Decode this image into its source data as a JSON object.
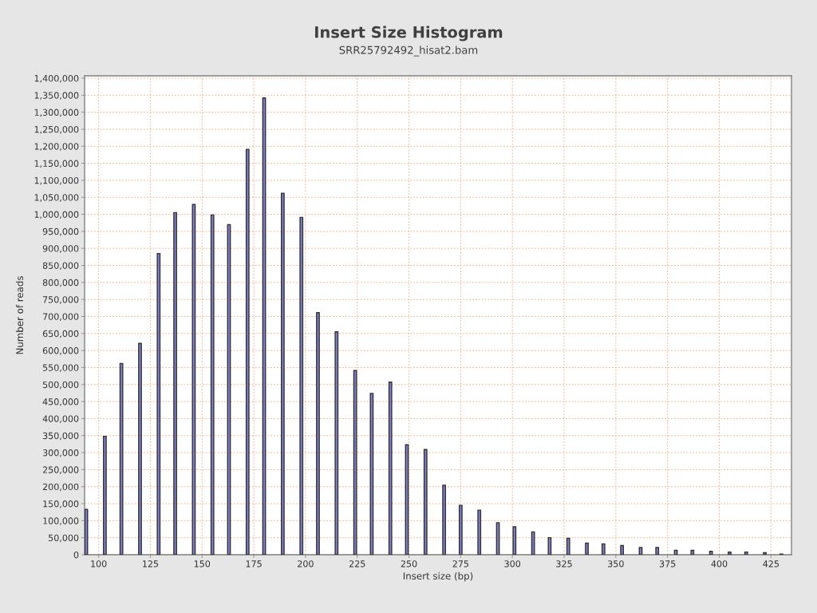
{
  "chart_data": {
    "type": "bar",
    "title": "Insert Size Histogram",
    "subtitle": "SRR25792492_hisat2.bam",
    "xlabel": "Insert size (bp)",
    "ylabel": "Number of reads",
    "x": [
      94,
      103,
      111,
      120,
      129,
      137,
      146,
      155,
      163,
      172,
      180,
      189,
      198,
      206,
      215,
      224,
      232,
      241,
      249,
      258,
      267,
      275,
      284,
      293,
      301,
      310,
      318,
      327,
      336,
      344,
      353,
      362,
      370,
      379,
      387,
      396,
      405,
      413,
      422,
      430
    ],
    "series": [
      {
        "color": "#8080cc",
        "values": [
          133000,
          348000,
          562000,
          621000,
          885000,
          1005000,
          1029000,
          998000,
          970000,
          1191000,
          1342000,
          1062000,
          991000,
          711000,
          655000,
          541000,
          474000,
          507000,
          323000,
          309000,
          204000,
          145000,
          131000,
          94000,
          82000,
          67000,
          50000,
          48000,
          34000,
          32000,
          27000,
          21000,
          21000,
          13000,
          13000,
          10000,
          8000,
          8000,
          6000,
          2000
        ]
      }
    ],
    "xlim": [
      93.2,
      434.9
    ],
    "xticks": [
      100,
      125,
      150,
      175,
      200,
      225,
      250,
      275,
      300,
      325,
      350,
      375,
      400,
      425
    ],
    "ylim": [
      0,
      1407000
    ],
    "yticks": [
      {
        "value": 0,
        "label": "0"
      },
      {
        "value": 50000,
        "label": "50,000"
      },
      {
        "value": 100000,
        "label": "100,000"
      },
      {
        "value": 150000,
        "label": "150,000"
      },
      {
        "value": 200000,
        "label": "200,000"
      },
      {
        "value": 250000,
        "label": "250,000"
      },
      {
        "value": 300000,
        "label": "300,000"
      },
      {
        "value": 350000,
        "label": "350,000"
      },
      {
        "value": 400000,
        "label": "400,000"
      },
      {
        "value": 450000,
        "label": "450,000"
      },
      {
        "value": 500000,
        "label": "500,000"
      },
      {
        "value": 550000,
        "label": "550,000"
      },
      {
        "value": 600000,
        "label": "600,000"
      },
      {
        "value": 650000,
        "label": "650,000"
      },
      {
        "value": 700000,
        "label": "700,000"
      },
      {
        "value": 750000,
        "label": "750,000"
      },
      {
        "value": 800000,
        "label": "800,000"
      },
      {
        "value": 850000,
        "label": "850,000"
      },
      {
        "value": 900000,
        "label": "900,000"
      },
      {
        "value": 950000,
        "label": "950,000"
      },
      {
        "value": 1000000,
        "label": "1,000,000"
      },
      {
        "value": 1050000,
        "label": "1,050,000"
      },
      {
        "value": 1100000,
        "label": "1,100,000"
      },
      {
        "value": 1150000,
        "label": "1,150,000"
      },
      {
        "value": 1200000,
        "label": "1,200,000"
      },
      {
        "value": 1250000,
        "label": "1,250,000"
      },
      {
        "value": 1300000,
        "label": "1,300,000"
      },
      {
        "value": 1350000,
        "label": "1,350,000"
      },
      {
        "value": 1400000,
        "label": "1,400,000"
      }
    ],
    "grid": true
  }
}
